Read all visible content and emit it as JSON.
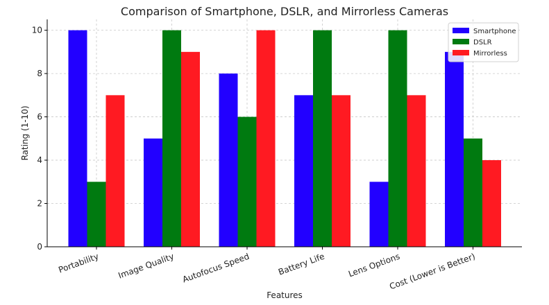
{
  "chart_data": {
    "type": "bar",
    "title": "Comparison of Smartphone, DSLR, and Mirrorless Cameras",
    "xlabel": "Features",
    "ylabel": "Rating (1-10)",
    "ylim": [
      0,
      10.5
    ],
    "yticks": [
      0,
      2,
      4,
      6,
      8,
      10
    ],
    "grid": true,
    "legend_position": "top-right",
    "categories": [
      "Portability",
      "Image Quality",
      "Autofocus Speed",
      "Battery Life",
      "Lens Options",
      "Cost (Lower is Better)"
    ],
    "series": [
      {
        "name": "Smartphone",
        "color": "#2200ff",
        "values": [
          10,
          5,
          8,
          7,
          3,
          9
        ]
      },
      {
        "name": "DSLR",
        "color": "#007a10",
        "values": [
          3,
          10,
          6,
          10,
          10,
          5
        ]
      },
      {
        "name": "Mirrorless",
        "color": "#ff1a22",
        "values": [
          7,
          9,
          10,
          7,
          7,
          4
        ]
      }
    ]
  }
}
